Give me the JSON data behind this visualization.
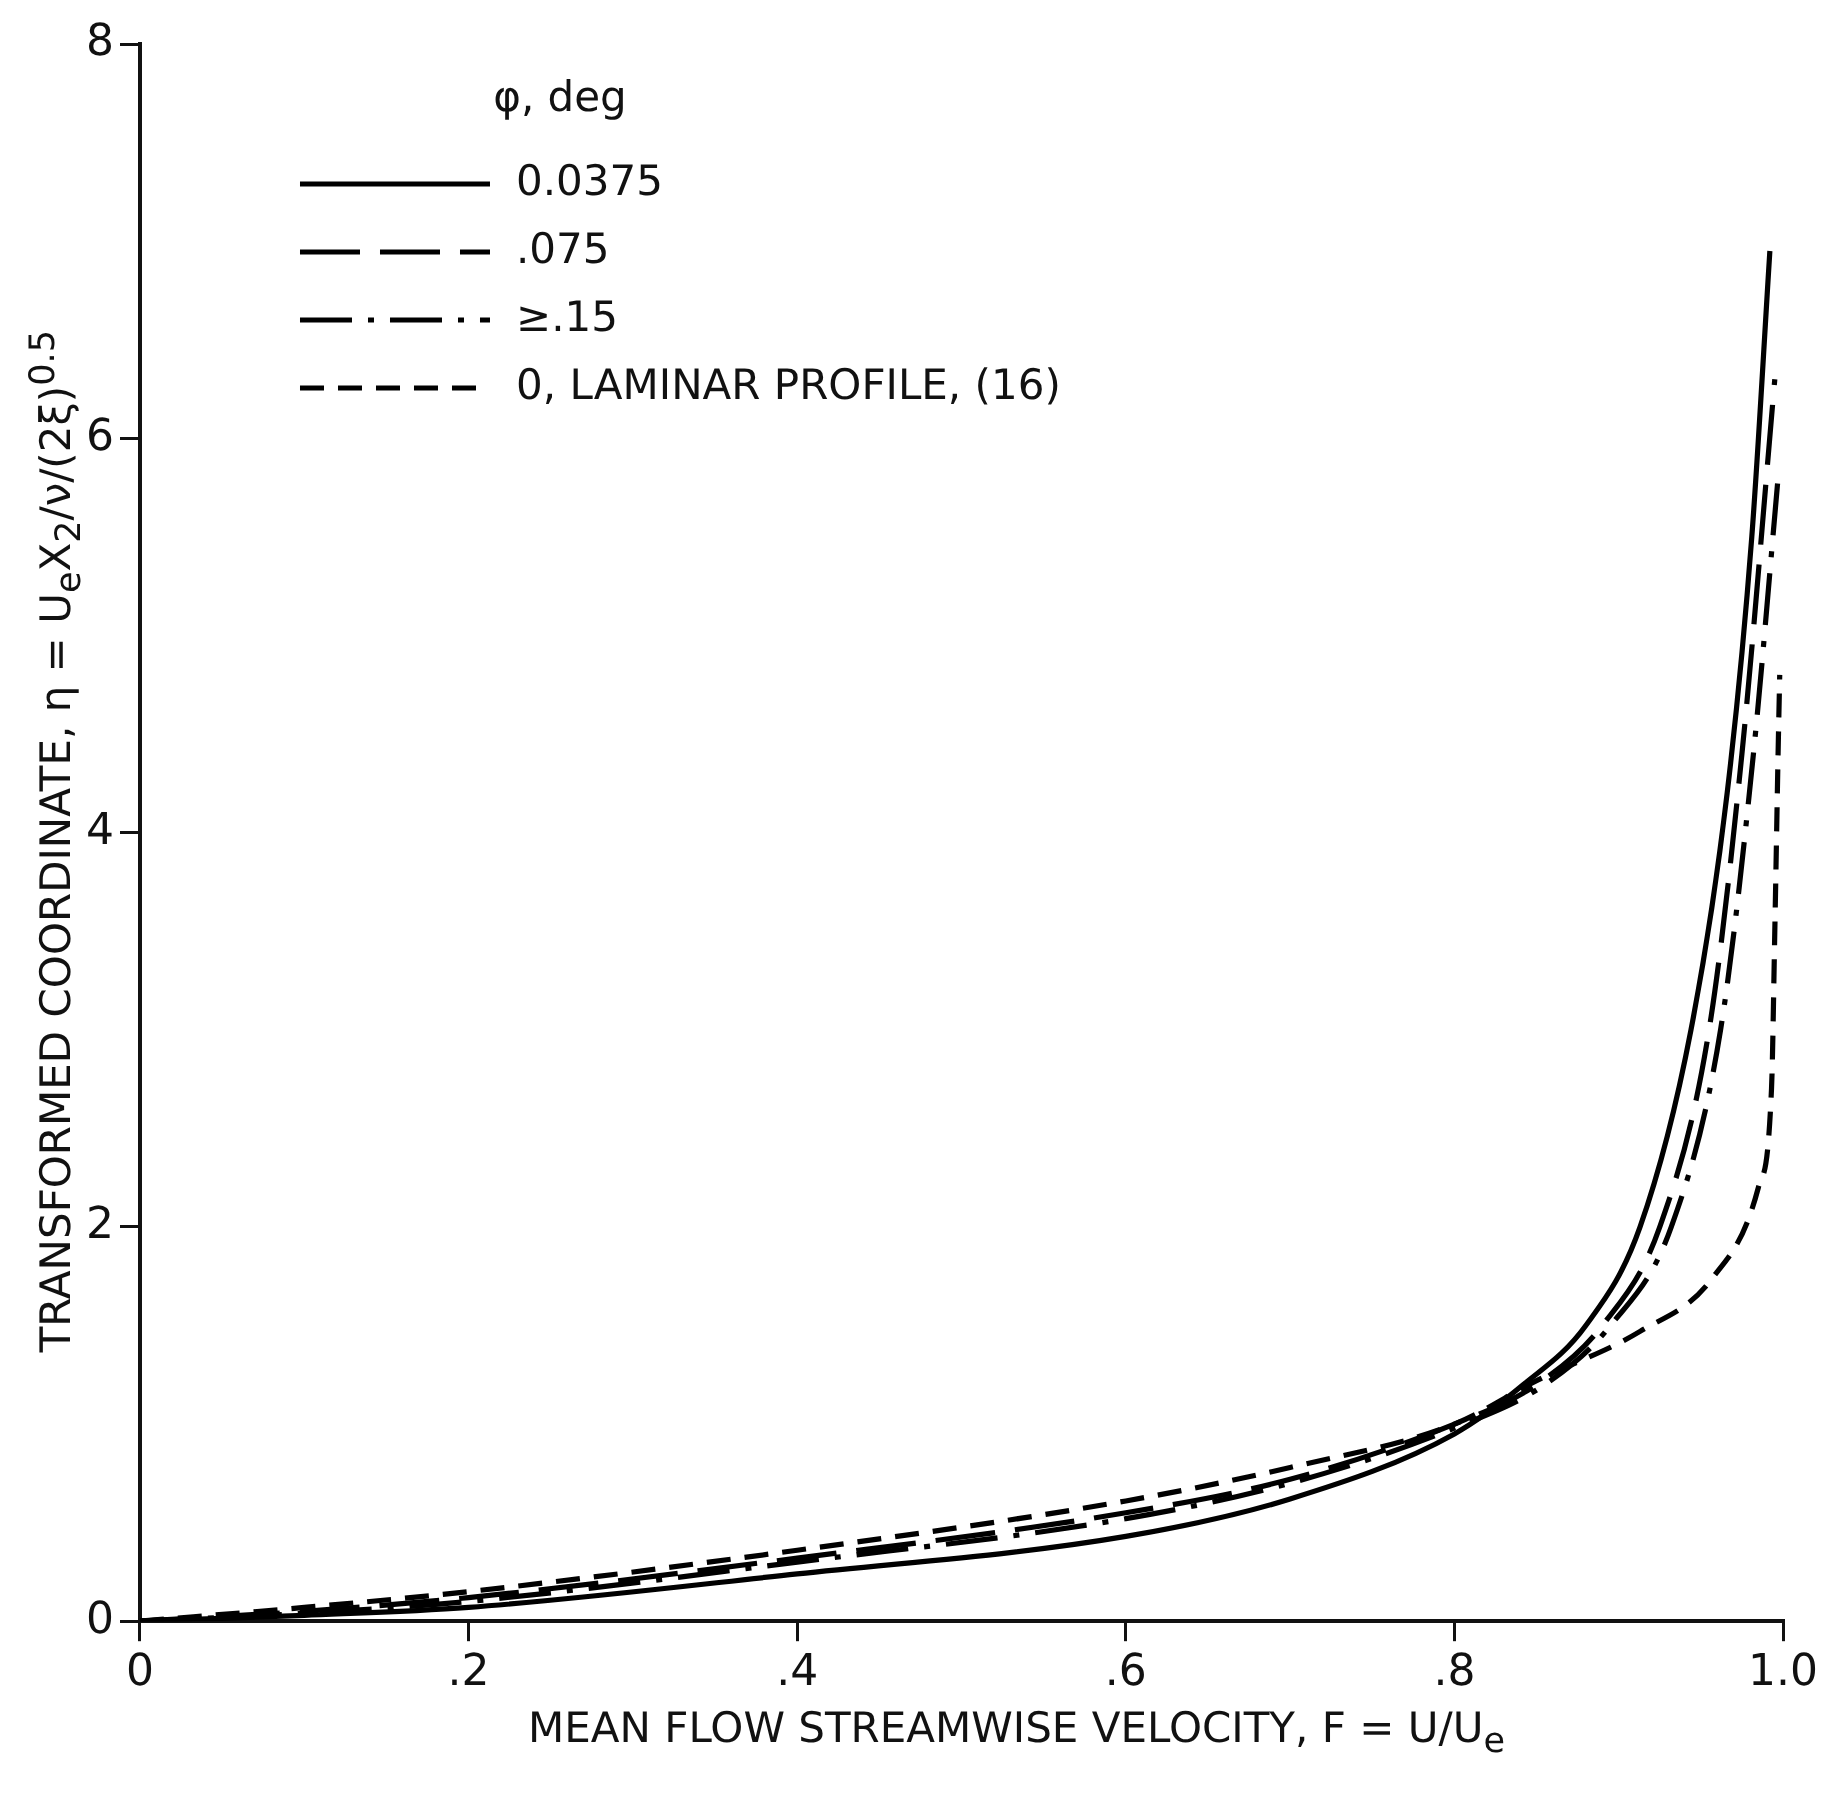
{
  "chart_data": {
    "type": "line",
    "xlabel": "MEAN FLOW STREAMWISE VELOCITY, F = U/U$_{e}$",
    "ylabel": "TRANSFORMED COORDINATE, η = U$_{e}$X$_{2}$/ν/(2ξ)$^{0.5}$",
    "legend_title": "φ, deg",
    "xlim": [
      0,
      1
    ],
    "ylim": [
      0,
      8
    ],
    "xticks": [
      0,
      {
        "value": 0.2,
        "label": ".2"
      },
      {
        "value": 0.4,
        "label": ".4"
      },
      {
        "value": 0.6,
        "label": ".6"
      },
      {
        "value": 0.8,
        "label": ".8"
      },
      {
        "value": 1,
        "label": "1.0"
      }
    ],
    "yticks": [
      0,
      2,
      4,
      6,
      8
    ],
    "grid": false,
    "legend": "top left",
    "marker": "none",
    "series": [
      {
        "name": "0.0375",
        "color": "#000000",
        "line_style": "solid",
        "x": [
          0,
          0.1,
          0.2,
          0.4,
          0.6,
          0.7,
          0.8,
          0.842,
          0.88,
          0.913,
          0.944,
          0.966,
          0.981,
          0.992
        ],
        "values": [
          0,
          0.03,
          0.07,
          0.24,
          0.43,
          0.62,
          0.95,
          1.2,
          1.5,
          2.0,
          3.0,
          4.2,
          5.5,
          6.95
        ]
      },
      {
        "name": ".075",
        "color": "#000000",
        "line_style": "longdash",
        "x": [
          0,
          0.1,
          0.2,
          0.4,
          0.6,
          0.7,
          0.8,
          0.85,
          0.89,
          0.925,
          0.955,
          0.975,
          0.995
        ],
        "values": [
          0,
          0.05,
          0.12,
          0.32,
          0.55,
          0.72,
          1.0,
          1.2,
          1.5,
          2.0,
          3.0,
          4.4,
          6.3
        ]
      },
      {
        "name": "≥.15",
        "color": "#000000",
        "line_style": "dashdot",
        "x": [
          0,
          0.1,
          0.2,
          0.4,
          0.6,
          0.7,
          0.8,
          0.855,
          0.895,
          0.932,
          0.962,
          0.982,
          0.997
        ],
        "values": [
          0,
          0.04,
          0.1,
          0.3,
          0.52,
          0.7,
          0.98,
          1.2,
          1.5,
          2.0,
          3.0,
          4.4,
          5.8
        ]
      },
      {
        "name": "0, LAMINAR PROFILE, (16)",
        "color": "#000000",
        "line_style": "dashed",
        "x": [
          0,
          0.1,
          0.2,
          0.4,
          0.6,
          0.7,
          0.8,
          0.85,
          0.913,
          0.957,
          0.985,
          0.993,
          0.995,
          0.997,
          0.998
        ],
        "values": [
          0,
          0.07,
          0.15,
          0.36,
          0.61,
          0.78,
          1.0,
          1.22,
          1.47,
          1.74,
          2.2,
          2.7,
          3.5,
          4.4,
          4.8
        ]
      }
    ]
  }
}
